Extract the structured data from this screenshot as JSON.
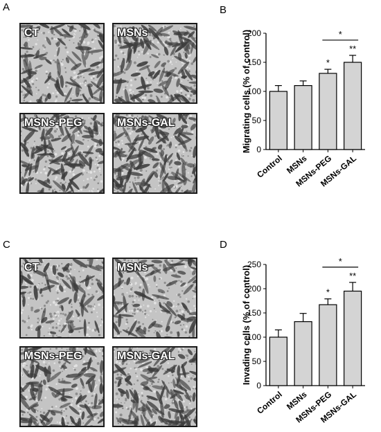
{
  "panels": {
    "A": {
      "letter": "A",
      "images": [
        {
          "label": "CT",
          "density": 0.45
        },
        {
          "label": "MSNs",
          "density": 0.5
        },
        {
          "label": "MSNs-PEG",
          "density": 0.6
        },
        {
          "label": "MSNs-GAL",
          "density": 0.8
        }
      ]
    },
    "B": {
      "letter": "B"
    },
    "C": {
      "letter": "C",
      "images": [
        {
          "label": "CT",
          "density": 0.25
        },
        {
          "label": "MSNs",
          "density": 0.35
        },
        {
          "label": "MSNs-PEG",
          "density": 0.55
        },
        {
          "label": "MSNs-GAL",
          "density": 0.65
        }
      ]
    },
    "D": {
      "letter": "D"
    }
  },
  "chart_data": [
    {
      "panel": "B",
      "type": "bar",
      "categories": [
        "Control",
        "MSNs",
        "MSNs-PEG",
        "MSNs-GAL"
      ],
      "values": [
        100,
        110,
        131,
        150
      ],
      "errors": [
        10,
        8,
        7,
        12
      ],
      "significance": [
        "",
        "",
        "*",
        "**"
      ],
      "bracket": {
        "from": "MSNs-PEG",
        "to": "MSNs-GAL",
        "label": "*"
      },
      "ylabel": "Migrating cells (% of control)",
      "ylim": [
        0,
        200
      ],
      "yticks": [
        0,
        50,
        100,
        150,
        200
      ],
      "bar_color": "#d4d4d4"
    },
    {
      "panel": "D",
      "type": "bar",
      "categories": [
        "Control",
        "MSNs",
        "MSNs-PEG",
        "MSNs-GAL"
      ],
      "values": [
        100,
        132,
        167,
        195
      ],
      "errors": [
        15,
        17,
        12,
        18
      ],
      "significance": [
        "",
        "",
        "*",
        "**"
      ],
      "bracket": {
        "from": "MSNs-PEG",
        "to": "MSNs-GAL",
        "label": "*"
      },
      "ylabel": "Invading cells (% of control)",
      "ylim": [
        0,
        250
      ],
      "yticks": [
        0,
        50,
        100,
        150,
        200,
        250
      ],
      "bar_color": "#d4d4d4"
    }
  ]
}
